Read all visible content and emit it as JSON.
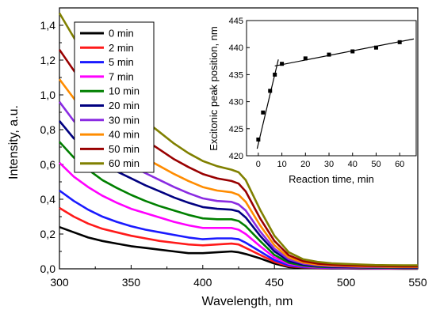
{
  "chart_data": [
    {
      "type": "line",
      "xlabel": "Wavelength, nm",
      "ylabel": "Intensity, a.u.",
      "xlim": [
        300,
        550
      ],
      "ylim": [
        0.0,
        1.5
      ],
      "x_ticks": [
        "300",
        "350",
        "400",
        "450",
        "500",
        "550"
      ],
      "y_ticks": [
        "0,0",
        "0,2",
        "0,4",
        "0,6",
        "0,8",
        "1,0",
        "1,2",
        "1,4"
      ],
      "x": [
        300,
        310,
        320,
        330,
        340,
        350,
        360,
        370,
        380,
        390,
        400,
        410,
        420,
        425,
        430,
        440,
        450,
        460,
        470,
        480,
        490,
        500,
        510,
        520,
        530,
        540,
        550
      ],
      "legend_position": "top-left",
      "series": [
        {
          "name": "0 min",
          "color": "#000000",
          "values": [
            0.24,
            0.21,
            0.18,
            0.16,
            0.145,
            0.13,
            0.12,
            0.11,
            0.1,
            0.09,
            0.09,
            0.095,
            0.1,
            0.095,
            0.085,
            0.06,
            0.03,
            0.01,
            0.005,
            0.003,
            0.002,
            0.002,
            0.001,
            0.001,
            0.001,
            0.0,
            0.0
          ]
        },
        {
          "name": "2 min",
          "color": "#ff1a1a",
          "values": [
            0.35,
            0.3,
            0.26,
            0.23,
            0.21,
            0.19,
            0.175,
            0.16,
            0.15,
            0.14,
            0.135,
            0.14,
            0.145,
            0.14,
            0.12,
            0.08,
            0.04,
            0.015,
            0.008,
            0.005,
            0.004,
            0.003,
            0.003,
            0.002,
            0.002,
            0.002,
            0.002
          ]
        },
        {
          "name": "5 min",
          "color": "#1a1aff",
          "values": [
            0.45,
            0.39,
            0.34,
            0.3,
            0.27,
            0.245,
            0.225,
            0.21,
            0.195,
            0.18,
            0.17,
            0.175,
            0.175,
            0.17,
            0.15,
            0.1,
            0.05,
            0.02,
            0.01,
            0.007,
            0.005,
            0.004,
            0.004,
            0.003,
            0.003,
            0.003,
            0.003
          ]
        },
        {
          "name": "7 min",
          "color": "#ff00ff",
          "values": [
            0.61,
            0.53,
            0.47,
            0.42,
            0.38,
            0.345,
            0.32,
            0.295,
            0.27,
            0.25,
            0.235,
            0.235,
            0.235,
            0.225,
            0.2,
            0.13,
            0.065,
            0.028,
            0.014,
            0.009,
            0.007,
            0.006,
            0.005,
            0.005,
            0.004,
            0.004,
            0.004
          ]
        },
        {
          "name": "10 min",
          "color": "#008000",
          "values": [
            0.73,
            0.64,
            0.57,
            0.51,
            0.465,
            0.425,
            0.39,
            0.36,
            0.335,
            0.31,
            0.29,
            0.285,
            0.285,
            0.275,
            0.245,
            0.16,
            0.08,
            0.035,
            0.018,
            0.012,
            0.009,
            0.008,
            0.007,
            0.006,
            0.006,
            0.005,
            0.005
          ]
        },
        {
          "name": "20 min",
          "color": "#000080",
          "values": [
            0.85,
            0.75,
            0.67,
            0.61,
            0.56,
            0.52,
            0.48,
            0.445,
            0.41,
            0.38,
            0.355,
            0.345,
            0.34,
            0.33,
            0.295,
            0.19,
            0.1,
            0.045,
            0.024,
            0.016,
            0.012,
            0.01,
            0.009,
            0.008,
            0.008,
            0.007,
            0.007
          ]
        },
        {
          "name": "30 min",
          "color": "#8a2be2",
          "values": [
            0.96,
            0.85,
            0.76,
            0.695,
            0.64,
            0.59,
            0.55,
            0.51,
            0.47,
            0.435,
            0.405,
            0.39,
            0.385,
            0.37,
            0.335,
            0.215,
            0.115,
            0.055,
            0.03,
            0.02,
            0.015,
            0.013,
            0.011,
            0.01,
            0.01,
            0.009,
            0.009
          ]
        },
        {
          "name": "40 min",
          "color": "#ff8c00",
          "values": [
            1.09,
            0.98,
            0.88,
            0.8,
            0.74,
            0.685,
            0.635,
            0.59,
            0.545,
            0.505,
            0.47,
            0.45,
            0.44,
            0.425,
            0.385,
            0.25,
            0.135,
            0.065,
            0.036,
            0.024,
            0.019,
            0.016,
            0.014,
            0.013,
            0.012,
            0.011,
            0.011
          ]
        },
        {
          "name": "50 min",
          "color": "#990000",
          "values": [
            1.26,
            1.14,
            1.03,
            0.94,
            0.87,
            0.8,
            0.74,
            0.685,
            0.63,
            0.585,
            0.545,
            0.52,
            0.505,
            0.49,
            0.445,
            0.29,
            0.16,
            0.078,
            0.044,
            0.03,
            0.024,
            0.02,
            0.018,
            0.016,
            0.015,
            0.014,
            0.014
          ]
        },
        {
          "name": "60 min",
          "color": "#808000",
          "values": [
            1.47,
            1.33,
            1.2,
            1.09,
            1.0,
            0.92,
            0.85,
            0.785,
            0.72,
            0.665,
            0.62,
            0.59,
            0.57,
            0.555,
            0.51,
            0.34,
            0.19,
            0.095,
            0.055,
            0.04,
            0.032,
            0.028,
            0.025,
            0.022,
            0.021,
            0.02,
            0.02
          ]
        }
      ]
    },
    {
      "type": "scatter",
      "xlabel": "Reaction time, min",
      "ylabel": "Excitonic peak position, nm",
      "xlim": [
        -5,
        67
      ],
      "ylim": [
        420,
        445
      ],
      "x_ticks": [
        "0",
        "10",
        "20",
        "30",
        "40",
        "50",
        "60"
      ],
      "y_ticks": [
        "420",
        "425",
        "430",
        "435",
        "440",
        "445"
      ],
      "x": [
        0,
        2,
        5,
        7,
        10,
        20,
        30,
        40,
        50,
        60
      ],
      "y": [
        423,
        428,
        432,
        435,
        437,
        438,
        438.7,
        439.3,
        440,
        441
      ],
      "fit_lines": [
        {
          "x": [
            -0.5,
            8.5
          ],
          "y": [
            421.3,
            437.8
          ]
        },
        {
          "x": [
            7,
            66
          ],
          "y": [
            436.6,
            441.6
          ]
        }
      ]
    }
  ]
}
